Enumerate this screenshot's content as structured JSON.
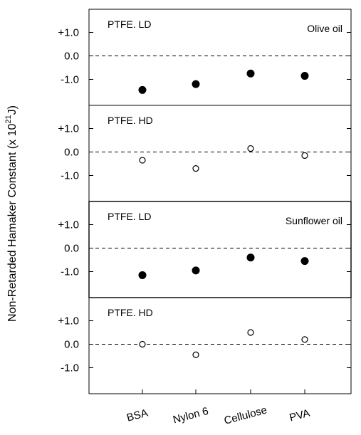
{
  "chart_data": {
    "type": "scatter",
    "ylabel": "Non-Retarded Hamaker Constant (x 10",
    "ylabel_exp": "21",
    "ylabel_unit": "J)",
    "categories": [
      "BSA",
      "Nylon 6",
      "Cellulose",
      "PVA"
    ],
    "ylim": [
      -2.0,
      2.0
    ],
    "yticks": [
      "+1.0",
      "0.0",
      "-1.0"
    ],
    "panels": [
      {
        "label": "PTFE. LD",
        "oil": "Olive oil",
        "marker": "filled",
        "values": [
          -1.45,
          -1.2,
          -0.75,
          -0.85
        ]
      },
      {
        "label": "PTFE. HD",
        "oil": "",
        "marker": "open",
        "values": [
          -0.35,
          -0.7,
          0.15,
          -0.15
        ]
      },
      {
        "label": "PTFE. LD",
        "oil": "Sunflower oil",
        "marker": "filled",
        "values": [
          -1.15,
          -0.95,
          -0.4,
          -0.55
        ]
      },
      {
        "label": "PTFE. HD",
        "oil": "",
        "marker": "open",
        "values": [
          0.0,
          -0.45,
          0.5,
          0.2
        ]
      }
    ]
  }
}
